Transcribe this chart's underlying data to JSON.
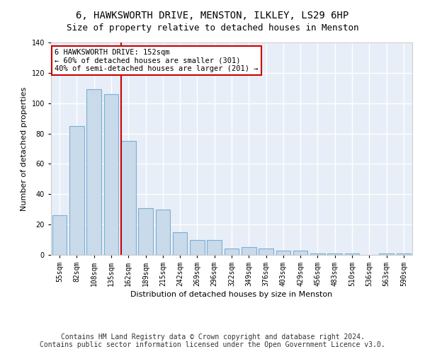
{
  "title": "6, HAWKSWORTH DRIVE, MENSTON, ILKLEY, LS29 6HP",
  "subtitle": "Size of property relative to detached houses in Menston",
  "xlabel": "Distribution of detached houses by size in Menston",
  "ylabel": "Number of detached properties",
  "categories": [
    "55sqm",
    "82sqm",
    "108sqm",
    "135sqm",
    "162sqm",
    "189sqm",
    "215sqm",
    "242sqm",
    "269sqm",
    "296sqm",
    "322sqm",
    "349sqm",
    "376sqm",
    "403sqm",
    "429sqm",
    "456sqm",
    "483sqm",
    "510sqm",
    "536sqm",
    "563sqm",
    "590sqm"
  ],
  "values": [
    26,
    85,
    109,
    106,
    75,
    31,
    30,
    15,
    10,
    10,
    4,
    5,
    4,
    3,
    3,
    1,
    1,
    1,
    0,
    1,
    1
  ],
  "bar_color": "#c9daea",
  "bar_edge_color": "#7bafd4",
  "marker_line_index": 4,
  "marker_line_color": "#cc0000",
  "annotation_text": "6 HAWKSWORTH DRIVE: 152sqm\n← 60% of detached houses are smaller (301)\n40% of semi-detached houses are larger (201) →",
  "annotation_box_color": "#ffffff",
  "annotation_box_edge": "#cc0000",
  "ylim": [
    0,
    140
  ],
  "yticks": [
    0,
    20,
    40,
    60,
    80,
    100,
    120,
    140
  ],
  "footer_line1": "Contains HM Land Registry data © Crown copyright and database right 2024.",
  "footer_line2": "Contains public sector information licensed under the Open Government Licence v3.0.",
  "bg_color": "#ffffff",
  "plot_bg_color": "#e8eef7",
  "grid_color": "#ffffff",
  "title_fontsize": 10,
  "subtitle_fontsize": 9,
  "axis_label_fontsize": 8,
  "tick_fontsize": 7,
  "footer_fontsize": 7,
  "annotation_fontsize": 7.5
}
